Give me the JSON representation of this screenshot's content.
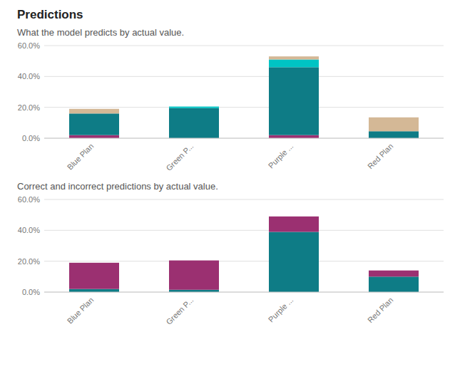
{
  "chart_data": [
    {
      "type": "bar",
      "stacked": true,
      "grid": true,
      "title": "Predictions",
      "subtitle": "What the model predicts by actual value.",
      "categories": [
        "Blue Plan",
        "Green P...",
        "Purple ...",
        "Red Plan"
      ],
      "series": [
        {
          "color": "#9b3071",
          "values": [
            0.02,
            0.0,
            0.02,
            0.0
          ]
        },
        {
          "color": "#0e7c86",
          "values": [
            0.14,
            0.195,
            0.44,
            0.045
          ]
        },
        {
          "color": "#00c4c4",
          "values": [
            0.0,
            0.01,
            0.05,
            0.0
          ]
        },
        {
          "color": "#d4b896",
          "values": [
            0.03,
            0.0,
            0.02,
            0.09
          ]
        }
      ],
      "ylim": [
        0,
        0.6
      ],
      "yticks": [
        {
          "value": 0.0,
          "label": "0.0%"
        },
        {
          "value": 0.2,
          "label": "20.0%"
        },
        {
          "value": 0.4,
          "label": "40.0%"
        },
        {
          "value": 0.6,
          "label": "60.0%"
        }
      ]
    },
    {
      "type": "bar",
      "stacked": true,
      "grid": true,
      "subtitle": "Correct and incorrect predictions by actual value.",
      "categories": [
        "Blue Plan",
        "Green P...",
        "Purple ...",
        "Red Plan"
      ],
      "series": [
        {
          "color": "#0e7c86",
          "values": [
            0.02,
            0.015,
            0.39,
            0.1
          ]
        },
        {
          "color": "#9b3071",
          "values": [
            0.17,
            0.19,
            0.1,
            0.04
          ]
        }
      ],
      "ylim": [
        0,
        0.6
      ],
      "yticks": [
        {
          "value": 0.0,
          "label": "0.0%"
        },
        {
          "value": 0.2,
          "label": "20.0%"
        },
        {
          "value": 0.4,
          "label": "40.0%"
        },
        {
          "value": 0.6,
          "label": "60.0%"
        }
      ]
    }
  ]
}
